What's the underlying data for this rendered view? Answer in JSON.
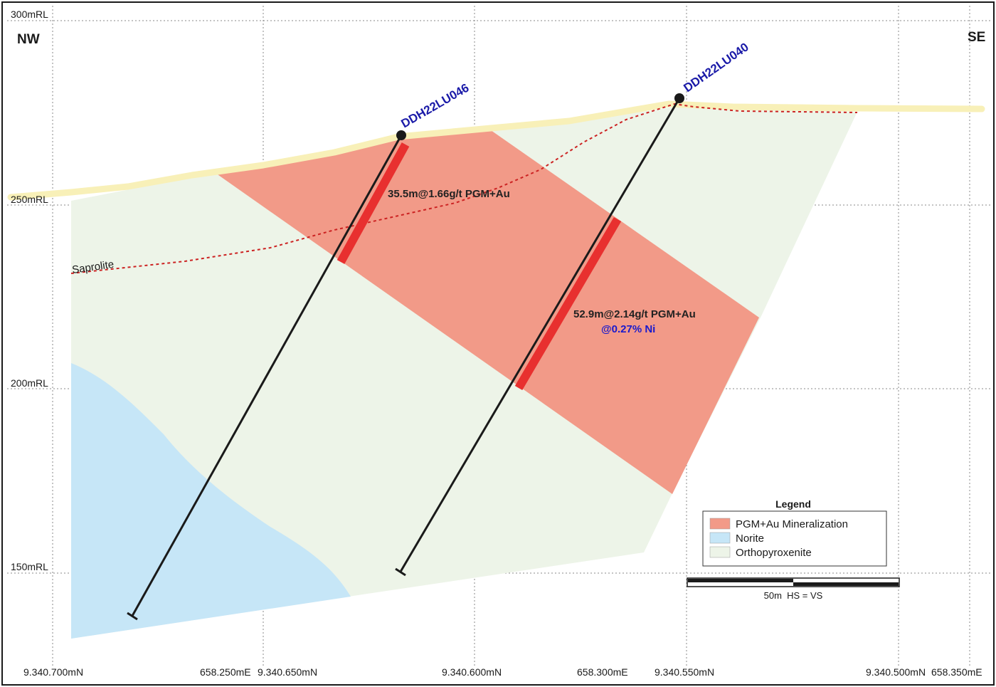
{
  "section": {
    "direction_left": "NW",
    "direction_right": "SE",
    "elevation_labels": [
      "300mRL",
      "250mRL",
      "200mRL",
      "150mRL"
    ],
    "coordinate_labels": [
      "9.340.700mN",
      "658.250mE",
      "9.340.650mN",
      "9.340.600mN",
      "658.300mE",
      "9.340.550mN",
      "9.340.500mN",
      "658.350mE"
    ],
    "saprolite_label": "Saprolite"
  },
  "drillholes": [
    {
      "id": "DDH22LU046",
      "intercept": "35.5m@1.66g/t PGM+Au",
      "intercept_ni": ""
    },
    {
      "id": "DDH22LU040",
      "intercept": "52.9m@2.14g/t PGM+Au",
      "intercept_ni": "@0.27% Ni"
    }
  ],
  "legend": {
    "title": "Legend",
    "items": [
      {
        "label": "PGM+Au Mineralization",
        "color": "#f29a88"
      },
      {
        "label": "Norite",
        "color": "#c6e6f7"
      },
      {
        "label": "Orthopyroxenite",
        "color": "#edf4e8"
      }
    ]
  },
  "scale_bar": {
    "label": "50m  HS = VS"
  },
  "colors": {
    "mineralization": "#f29a88",
    "intercept": "#e8302f",
    "norite": "#c6e6f7",
    "orthopyroxenite": "#edf4e8",
    "topography": "#f8f0b8",
    "saprolite_line": "#cc2222",
    "drillhole": "#1a1a1a"
  }
}
